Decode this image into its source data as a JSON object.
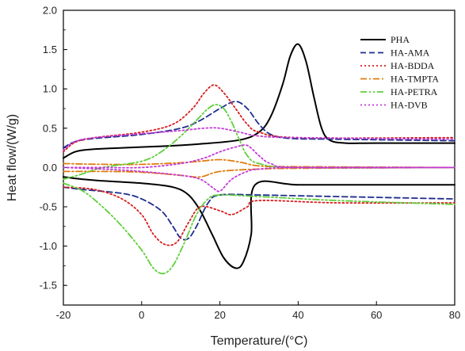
{
  "chart_data": {
    "type": "line",
    "xlabel": "Temperature/(°C)",
    "ylabel": "Heat flow/(W/g)",
    "xlim": [
      -20,
      80
    ],
    "ylim": [
      -1.75,
      2.0
    ],
    "xticks": [
      -20,
      0,
      20,
      40,
      60,
      80
    ],
    "yticks": [
      -1.5,
      -1.0,
      -0.5,
      0.0,
      0.5,
      1.0,
      1.5,
      2.0
    ],
    "ytick_labels": [
      "-1.5",
      "-1.0",
      "-0.5",
      "0.0",
      "0.5",
      "1.0",
      "1.5",
      "2.0"
    ],
    "legend_position": "top-right",
    "grid": false,
    "series": [
      {
        "name": "PHA",
        "color": "#000000",
        "dash": "solid",
        "curves": [
          [
            [
              -20,
              0.12
            ],
            [
              -17,
              0.2
            ],
            [
              -13,
              0.23
            ],
            [
              -5,
              0.25
            ],
            [
              5,
              0.27
            ],
            [
              15,
              0.3
            ],
            [
              25,
              0.35
            ],
            [
              30,
              0.45
            ],
            [
              33,
              0.65
            ],
            [
              36,
              1.05
            ],
            [
              38,
              1.42
            ],
            [
              40,
              1.57
            ],
            [
              42,
              1.35
            ],
            [
              44,
              0.9
            ],
            [
              46,
              0.5
            ],
            [
              48,
              0.35
            ],
            [
              52,
              0.31
            ],
            [
              60,
              0.31
            ],
            [
              80,
              0.31
            ]
          ],
          [
            [
              -20,
              -0.12
            ],
            [
              -15,
              -0.15
            ],
            [
              -10,
              -0.17
            ],
            [
              0,
              -0.2
            ],
            [
              8,
              -0.25
            ],
            [
              12,
              -0.35
            ],
            [
              15,
              -0.55
            ],
            [
              18,
              -0.85
            ],
            [
              21,
              -1.15
            ],
            [
              24,
              -1.28
            ],
            [
              26,
              -1.2
            ],
            [
              28,
              -0.85
            ],
            [
              29,
              -0.22
            ],
            [
              40,
              -0.22
            ],
            [
              60,
              -0.22
            ],
            [
              80,
              -0.22
            ]
          ]
        ]
      },
      {
        "name": "HA-AMA",
        "color": "#1f2d8f",
        "dash": "dashed",
        "curves": [
          [
            [
              -20,
              0.25
            ],
            [
              -17,
              0.33
            ],
            [
              -12,
              0.37
            ],
            [
              0,
              0.42
            ],
            [
              10,
              0.5
            ],
            [
              15,
              0.6
            ],
            [
              20,
              0.75
            ],
            [
              24,
              0.84
            ],
            [
              27,
              0.75
            ],
            [
              30,
              0.55
            ],
            [
              33,
              0.42
            ],
            [
              38,
              0.37
            ],
            [
              50,
              0.36
            ],
            [
              80,
              0.34
            ]
          ],
          [
            [
              -20,
              -0.25
            ],
            [
              -15,
              -0.28
            ],
            [
              -5,
              -0.33
            ],
            [
              0,
              -0.4
            ],
            [
              5,
              -0.55
            ],
            [
              8,
              -0.75
            ],
            [
              10,
              -0.9
            ],
            [
              12,
              -0.9
            ],
            [
              14,
              -0.75
            ],
            [
              17,
              -0.45
            ],
            [
              20,
              -0.35
            ],
            [
              30,
              -0.35
            ],
            [
              50,
              -0.37
            ],
            [
              80,
              -0.4
            ]
          ]
        ]
      },
      {
        "name": "HA-BDDA",
        "color": "#d81e1e",
        "dash": "dotted",
        "curves": [
          [
            [
              -20,
              0.2
            ],
            [
              -17,
              0.32
            ],
            [
              -12,
              0.38
            ],
            [
              0,
              0.45
            ],
            [
              8,
              0.55
            ],
            [
              13,
              0.75
            ],
            [
              16,
              0.95
            ],
            [
              18.5,
              1.05
            ],
            [
              21,
              0.95
            ],
            [
              24,
              0.75
            ],
            [
              27,
              0.55
            ],
            [
              30,
              0.45
            ],
            [
              40,
              0.38
            ],
            [
              80,
              0.38
            ]
          ],
          [
            [
              -20,
              -0.25
            ],
            [
              -12,
              -0.28
            ],
            [
              -5,
              -0.4
            ],
            [
              0,
              -0.6
            ],
            [
              3,
              -0.85
            ],
            [
              6,
              -0.98
            ],
            [
              9,
              -0.95
            ],
            [
              12,
              -0.7
            ],
            [
              15,
              -0.5
            ],
            [
              20,
              -0.55
            ],
            [
              23,
              -0.6
            ],
            [
              27,
              -0.5
            ],
            [
              30,
              -0.42
            ],
            [
              50,
              -0.45
            ],
            [
              80,
              -0.45
            ]
          ]
        ]
      },
      {
        "name": "HA-TMPTA",
        "color": "#e07b10",
        "dash": "dashdot",
        "curves": [
          [
            [
              -20,
              0.05
            ],
            [
              -10,
              0.04
            ],
            [
              0,
              0.04
            ],
            [
              10,
              0.06
            ],
            [
              15,
              0.08
            ],
            [
              20,
              0.1
            ],
            [
              25,
              0.07
            ],
            [
              30,
              0.02
            ],
            [
              40,
              0.01
            ],
            [
              80,
              0.0
            ]
          ],
          [
            [
              -20,
              -0.05
            ],
            [
              -10,
              -0.05
            ],
            [
              0,
              -0.06
            ],
            [
              10,
              -0.1
            ],
            [
              15,
              -0.12
            ],
            [
              20,
              -0.05
            ],
            [
              30,
              -0.02
            ],
            [
              40,
              -0.01
            ],
            [
              80,
              0.0
            ]
          ]
        ]
      },
      {
        "name": "HA-PETRA",
        "color": "#5fcf3c",
        "dash": "dashdotdot",
        "curves": [
          [
            [
              -20,
              -0.15
            ],
            [
              -15,
              -0.08
            ],
            [
              -10,
              0.0
            ],
            [
              0,
              0.08
            ],
            [
              5,
              0.2
            ],
            [
              10,
              0.4
            ],
            [
              14,
              0.6
            ],
            [
              17,
              0.75
            ],
            [
              19,
              0.8
            ],
            [
              21,
              0.75
            ],
            [
              23,
              0.58
            ],
            [
              25,
              0.35
            ],
            [
              27,
              0.15
            ],
            [
              30,
              0.05
            ],
            [
              40,
              0.0
            ],
            [
              80,
              0.0
            ]
          ],
          [
            [
              -20,
              -0.2
            ],
            [
              -15,
              -0.3
            ],
            [
              -10,
              -0.5
            ],
            [
              -5,
              -0.75
            ],
            [
              0,
              -1.05
            ],
            [
              3,
              -1.28
            ],
            [
              5.5,
              -1.35
            ],
            [
              8,
              -1.25
            ],
            [
              11,
              -0.95
            ],
            [
              14,
              -0.6
            ],
            [
              17,
              -0.4
            ],
            [
              20,
              -0.35
            ],
            [
              30,
              -0.37
            ],
            [
              50,
              -0.42
            ],
            [
              80,
              -0.47
            ]
          ]
        ]
      },
      {
        "name": "HA-DVB",
        "color": "#c43ad8",
        "dash": "dotted",
        "curves": [
          [
            [
              -20,
              0.22
            ],
            [
              -17,
              0.33
            ],
            [
              -12,
              0.38
            ],
            [
              0,
              0.43
            ],
            [
              10,
              0.47
            ],
            [
              16,
              0.5
            ],
            [
              20,
              0.5
            ],
            [
              25,
              0.45
            ],
            [
              30,
              0.4
            ],
            [
              40,
              0.38
            ],
            [
              80,
              0.36
            ]
          ],
          [
            [
              -20,
              0.0
            ],
            [
              -10,
              0.0
            ],
            [
              0,
              0.0
            ],
            [
              10,
              0.05
            ],
            [
              16,
              0.12
            ],
            [
              20,
              0.2
            ],
            [
              24,
              0.26
            ],
            [
              27,
              0.28
            ],
            [
              30,
              0.15
            ],
            [
              33,
              0.05
            ],
            [
              40,
              0.0
            ],
            [
              80,
              0.0
            ]
          ],
          [
            [
              -20,
              0.0
            ],
            [
              -10,
              -0.02
            ],
            [
              0,
              -0.05
            ],
            [
              10,
              -0.1
            ],
            [
              15,
              -0.15
            ],
            [
              18,
              -0.25
            ],
            [
              20,
              -0.3
            ],
            [
              23,
              -0.15
            ],
            [
              27,
              -0.05
            ],
            [
              30,
              -0.02
            ],
            [
              40,
              0.0
            ],
            [
              80,
              0.0
            ]
          ]
        ]
      }
    ]
  }
}
